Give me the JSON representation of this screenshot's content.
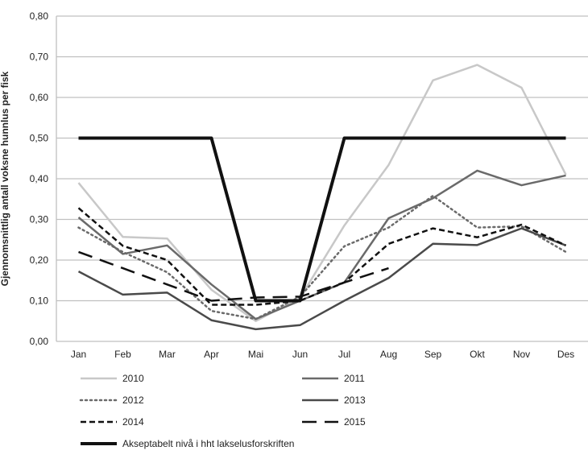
{
  "chart_data": {
    "type": "line",
    "title": "",
    "xlabel": "",
    "ylabel": "Gjennomsnittlig antall voksne hunnlus per fisk",
    "ylim": [
      0,
      0.8
    ],
    "yticks": [
      "0,00",
      "0,10",
      "0,20",
      "0,30",
      "0,40",
      "0,50",
      "0,60",
      "0,70",
      "0,80"
    ],
    "grid": true,
    "legend_position": "bottom",
    "categories": [
      "Jan",
      "Feb",
      "Mar",
      "Apr",
      "Mai",
      "Jun",
      "Jul",
      "Aug",
      "Sep",
      "Okt",
      "Nov",
      "Des"
    ],
    "series": [
      {
        "name": "2010",
        "color": "#c8c8c8",
        "style": "solid",
        "values": [
          0.39,
          0.257,
          0.253,
          0.127,
          0.05,
          0.107,
          0.285,
          0.434,
          0.642,
          0.68,
          0.624,
          0.41
        ]
      },
      {
        "name": "2011",
        "color": "#6a6a6a",
        "style": "solid",
        "values": [
          0.305,
          0.215,
          0.236,
          0.14,
          0.055,
          0.1,
          0.145,
          0.303,
          0.352,
          0.42,
          0.384,
          0.408
        ]
      },
      {
        "name": "2012",
        "color": "#6a6a6a",
        "style": "dotted",
        "values": [
          0.28,
          0.22,
          0.17,
          0.075,
          0.055,
          0.11,
          0.234,
          0.28,
          0.358,
          0.28,
          0.283,
          0.22
        ]
      },
      {
        "name": "2013",
        "color": "#4a4a4a",
        "style": "solid",
        "values": [
          0.172,
          0.115,
          0.12,
          0.052,
          0.03,
          0.04,
          0.1,
          0.156,
          0.24,
          0.237,
          0.278,
          0.236
        ]
      },
      {
        "name": "2014",
        "color": "#111111",
        "style": "dashed",
        "values": [
          0.328,
          0.235,
          0.2,
          0.09,
          0.09,
          0.1,
          0.145,
          0.24,
          0.278,
          0.256,
          0.287,
          0.236
        ]
      },
      {
        "name": "2015",
        "color": "#111111",
        "style": "longdash",
        "values": [
          0.22,
          0.18,
          0.14,
          0.1,
          0.108,
          0.11,
          0.145,
          0.18,
          null,
          null,
          null,
          null
        ]
      },
      {
        "name": "Akseptabelt nivå i hht lakselusforskriften",
        "color": "#111111",
        "style": "thick",
        "values": [
          0.5,
          0.5,
          0.5,
          0.5,
          0.1,
          0.1,
          0.5,
          0.5,
          0.5,
          0.5,
          0.5,
          0.5
        ]
      }
    ]
  }
}
